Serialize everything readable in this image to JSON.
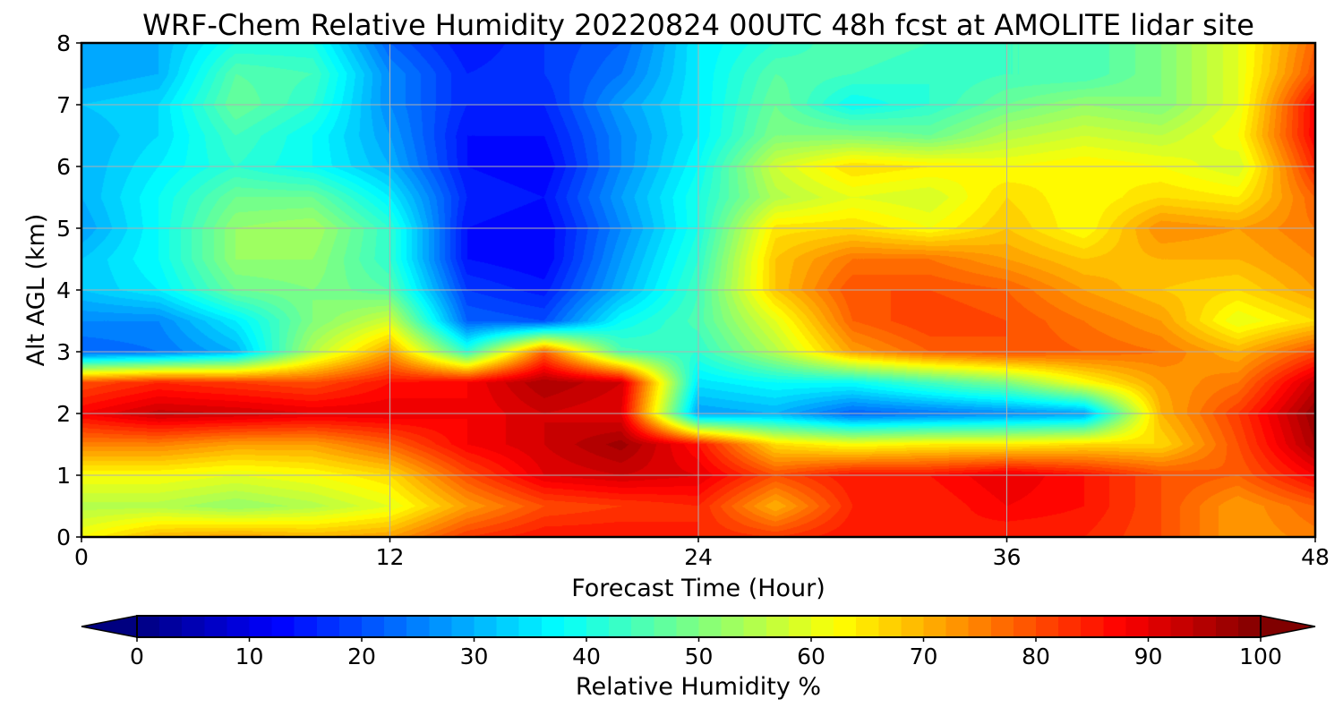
{
  "chart_data": {
    "type": "heatmap",
    "title": "WRF-Chem Relative Humidity 20220824 00UTC 48h fcst at AMOLITE lidar site",
    "xlabel": "Forecast Time (Hour)",
    "ylabel": "Alt AGL (km)",
    "xlim": [
      0,
      48
    ],
    "ylim": [
      0,
      8
    ],
    "xticks": [
      0,
      12,
      24,
      36,
      48
    ],
    "yticks": [
      0,
      1,
      2,
      3,
      4,
      5,
      6,
      7,
      8
    ],
    "grid": true,
    "x": [
      0,
      3,
      6,
      9,
      12,
      15,
      18,
      21,
      24,
      27,
      30,
      33,
      36,
      39,
      42,
      45,
      48
    ],
    "y": [
      0,
      0.5,
      1,
      1.5,
      2,
      2.5,
      3,
      3.5,
      4,
      4.5,
      5,
      5.5,
      6,
      6.5,
      7,
      7.5,
      8
    ],
    "z": [
      [
        62,
        70,
        72,
        70,
        72,
        82,
        86,
        86,
        84,
        82,
        86,
        86,
        84,
        84,
        80,
        72,
        75
      ],
      [
        55,
        55,
        52,
        55,
        60,
        72,
        80,
        82,
        84,
        70,
        84,
        84,
        88,
        86,
        80,
        72,
        78
      ],
      [
        62,
        62,
        60,
        62,
        66,
        80,
        90,
        92,
        90,
        80,
        86,
        86,
        90,
        86,
        80,
        78,
        88
      ],
      [
        75,
        75,
        72,
        72,
        78,
        88,
        92,
        97,
        86,
        66,
        62,
        64,
        64,
        66,
        66,
        80,
        96
      ],
      [
        88,
        93,
        92,
        90,
        90,
        88,
        92,
        90,
        28,
        30,
        22,
        24,
        26,
        28,
        70,
        82,
        98
      ],
      [
        80,
        84,
        82,
        80,
        86,
        88,
        96,
        92,
        35,
        38,
        38,
        44,
        50,
        62,
        72,
        76,
        93
      ],
      [
        22,
        24,
        30,
        55,
        72,
        42,
        78,
        45,
        42,
        55,
        72,
        78,
        80,
        78,
        76,
        70,
        80
      ],
      [
        26,
        26,
        36,
        50,
        58,
        22,
        20,
        38,
        45,
        60,
        78,
        82,
        80,
        76,
        72,
        60,
        66
      ],
      [
        32,
        36,
        48,
        50,
        46,
        18,
        15,
        30,
        44,
        68,
        80,
        80,
        78,
        72,
        68,
        66,
        72
      ],
      [
        32,
        38,
        52,
        52,
        42,
        14,
        12,
        28,
        42,
        68,
        76,
        76,
        72,
        68,
        70,
        70,
        74
      ],
      [
        28,
        38,
        52,
        54,
        42,
        14,
        12,
        26,
        40,
        65,
        66,
        62,
        68,
        62,
        74,
        72,
        76
      ],
      [
        30,
        38,
        48,
        48,
        36,
        16,
        14,
        28,
        40,
        55,
        60,
        58,
        66,
        62,
        66,
        64,
        78
      ],
      [
        30,
        36,
        42,
        38,
        30,
        14,
        12,
        26,
        38,
        58,
        66,
        64,
        62,
        64,
        62,
        58,
        84
      ],
      [
        30,
        34,
        44,
        38,
        28,
        14,
        14,
        26,
        36,
        50,
        50,
        48,
        55,
        58,
        56,
        62,
        88
      ],
      [
        32,
        34,
        48,
        42,
        26,
        16,
        16,
        28,
        36,
        48,
        38,
        42,
        48,
        52,
        50,
        60,
        88
      ],
      [
        28,
        30,
        46,
        44,
        26,
        16,
        18,
        24,
        36,
        46,
        44,
        42,
        44,
        44,
        50,
        60,
        80
      ],
      [
        28,
        30,
        40,
        40,
        22,
        14,
        18,
        22,
        36,
        42,
        46,
        44,
        44,
        44,
        50,
        60,
        78
      ]
    ],
    "colorbar": {
      "label": "Relative Humidity %",
      "min": 0,
      "max": 100,
      "ticks": [
        0,
        10,
        20,
        30,
        40,
        50,
        60,
        70,
        80,
        90,
        100
      ],
      "colormap": "jet",
      "extend": "both"
    }
  }
}
